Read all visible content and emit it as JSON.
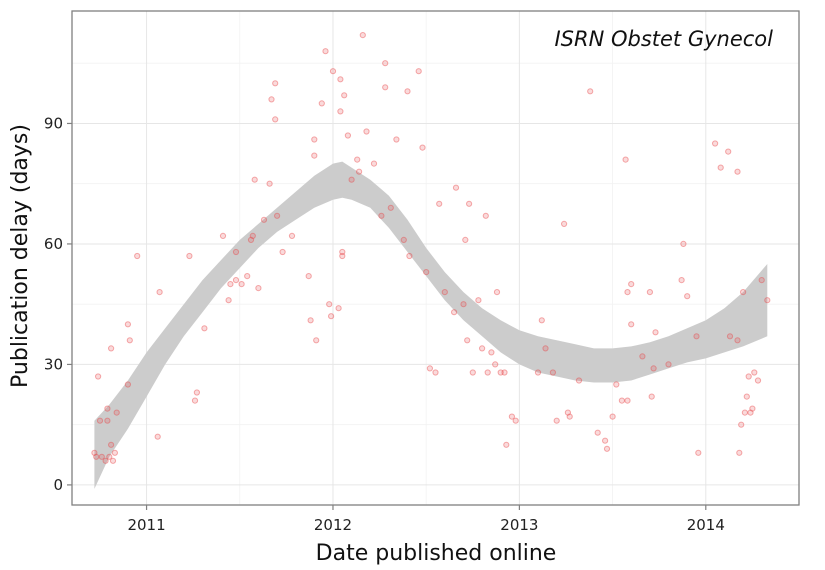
{
  "chart_data": {
    "type": "scatter",
    "title": "ISRN Obstet Gynecol",
    "xlabel": "Date published online",
    "ylabel": "Publication delay (days)",
    "x_is_year_fraction": true,
    "xlim": [
      2010.6,
      2014.5
    ],
    "ylim": [
      -5,
      118
    ],
    "x_ticks": [
      2011,
      2012,
      2013,
      2014
    ],
    "x_tick_labels": [
      "2011",
      "2012",
      "2013",
      "2014"
    ],
    "y_ticks": [
      0,
      30,
      60,
      90
    ],
    "y_tick_labels": [
      "0",
      "30",
      "60",
      "90"
    ],
    "grid": true,
    "legend": "none",
    "point_color": "#e8474a",
    "band_color": "#cccccc",
    "points": [
      [
        2010.72,
        8
      ],
      [
        2010.73,
        7
      ],
      [
        2010.74,
        27
      ],
      [
        2010.75,
        16
      ],
      [
        2010.76,
        7
      ],
      [
        2010.78,
        6
      ],
      [
        2010.79,
        16
      ],
      [
        2010.79,
        19
      ],
      [
        2010.8,
        7
      ],
      [
        2010.81,
        34
      ],
      [
        2010.81,
        10
      ],
      [
        2010.82,
        6
      ],
      [
        2010.83,
        8
      ],
      [
        2010.84,
        18
      ],
      [
        2010.9,
        25
      ],
      [
        2010.9,
        40
      ],
      [
        2010.91,
        36
      ],
      [
        2010.95,
        57
      ],
      [
        2011.06,
        12
      ],
      [
        2011.07,
        48
      ],
      [
        2011.23,
        57
      ],
      [
        2011.26,
        21
      ],
      [
        2011.27,
        23
      ],
      [
        2011.31,
        39
      ],
      [
        2011.41,
        62
      ],
      [
        2011.44,
        46
      ],
      [
        2011.45,
        50
      ],
      [
        2011.48,
        58
      ],
      [
        2011.48,
        51
      ],
      [
        2011.51,
        50
      ],
      [
        2011.54,
        52
      ],
      [
        2011.56,
        61
      ],
      [
        2011.57,
        62
      ],
      [
        2011.58,
        76
      ],
      [
        2011.6,
        49
      ],
      [
        2011.63,
        66
      ],
      [
        2011.66,
        75
      ],
      [
        2011.67,
        96
      ],
      [
        2011.69,
        100
      ],
      [
        2011.69,
        91
      ],
      [
        2011.7,
        67
      ],
      [
        2011.73,
        58
      ],
      [
        2011.78,
        62
      ],
      [
        2011.87,
        52
      ],
      [
        2011.88,
        41
      ],
      [
        2011.9,
        82
      ],
      [
        2011.9,
        86
      ],
      [
        2011.91,
        36
      ],
      [
        2011.94,
        95
      ],
      [
        2011.96,
        108
      ],
      [
        2011.98,
        45
      ],
      [
        2011.99,
        42
      ],
      [
        2012.0,
        103
      ],
      [
        2012.03,
        44
      ],
      [
        2012.05,
        57
      ],
      [
        2012.05,
        58
      ],
      [
        2012.04,
        93
      ],
      [
        2012.04,
        101
      ],
      [
        2012.06,
        97
      ],
      [
        2012.08,
        87
      ],
      [
        2012.1,
        76
      ],
      [
        2012.13,
        81
      ],
      [
        2012.14,
        78
      ],
      [
        2012.16,
        112
      ],
      [
        2012.18,
        88
      ],
      [
        2012.22,
        80
      ],
      [
        2012.26,
        67
      ],
      [
        2012.28,
        99
      ],
      [
        2012.28,
        105
      ],
      [
        2012.31,
        69
      ],
      [
        2012.34,
        86
      ],
      [
        2012.38,
        61
      ],
      [
        2012.4,
        98
      ],
      [
        2012.41,
        57
      ],
      [
        2012.46,
        103
      ],
      [
        2012.48,
        84
      ],
      [
        2012.5,
        53
      ],
      [
        2012.52,
        29
      ],
      [
        2012.55,
        28
      ],
      [
        2012.57,
        70
      ],
      [
        2012.6,
        48
      ],
      [
        2012.65,
        43
      ],
      [
        2012.66,
        74
      ],
      [
        2012.7,
        45
      ],
      [
        2012.71,
        61
      ],
      [
        2012.72,
        36
      ],
      [
        2012.73,
        70
      ],
      [
        2012.75,
        28
      ],
      [
        2012.78,
        46
      ],
      [
        2012.8,
        34
      ],
      [
        2012.82,
        67
      ],
      [
        2012.83,
        28
      ],
      [
        2012.85,
        33
      ],
      [
        2012.87,
        30
      ],
      [
        2012.88,
        48
      ],
      [
        2012.9,
        28
      ],
      [
        2012.92,
        28
      ],
      [
        2012.93,
        10
      ],
      [
        2012.96,
        17
      ],
      [
        2012.98,
        16
      ],
      [
        2013.1,
        28
      ],
      [
        2013.12,
        41
      ],
      [
        2013.14,
        34
      ],
      [
        2013.18,
        28
      ],
      [
        2013.2,
        16
      ],
      [
        2013.24,
        65
      ],
      [
        2013.26,
        18
      ],
      [
        2013.27,
        17
      ],
      [
        2013.32,
        26
      ],
      [
        2013.38,
        98
      ],
      [
        2013.42,
        13
      ],
      [
        2013.46,
        11
      ],
      [
        2013.47,
        9
      ],
      [
        2013.5,
        17
      ],
      [
        2013.52,
        25
      ],
      [
        2013.55,
        21
      ],
      [
        2013.57,
        81
      ],
      [
        2013.58,
        48
      ],
      [
        2013.58,
        21
      ],
      [
        2013.6,
        50
      ],
      [
        2013.6,
        40
      ],
      [
        2013.66,
        32
      ],
      [
        2013.7,
        48
      ],
      [
        2013.71,
        22
      ],
      [
        2013.72,
        29
      ],
      [
        2013.73,
        38
      ],
      [
        2013.8,
        30
      ],
      [
        2013.87,
        51
      ],
      [
        2013.88,
        60
      ],
      [
        2013.9,
        47
      ],
      [
        2013.96,
        8
      ],
      [
        2013.95,
        37
      ],
      [
        2014.05,
        85
      ],
      [
        2014.08,
        79
      ],
      [
        2014.12,
        83
      ],
      [
        2014.13,
        37
      ],
      [
        2014.17,
        36
      ],
      [
        2014.17,
        78
      ],
      [
        2014.18,
        8
      ],
      [
        2014.19,
        15
      ],
      [
        2014.2,
        48
      ],
      [
        2014.21,
        18
      ],
      [
        2014.22,
        22
      ],
      [
        2014.23,
        27
      ],
      [
        2014.24,
        18
      ],
      [
        2014.25,
        19
      ],
      [
        2014.26,
        28
      ],
      [
        2014.28,
        26
      ],
      [
        2014.3,
        51
      ],
      [
        2014.33,
        46
      ]
    ],
    "band": {
      "x": [
        2010.72,
        2010.8,
        2010.9,
        2011.0,
        2011.1,
        2011.2,
        2011.3,
        2011.4,
        2011.5,
        2011.6,
        2011.7,
        2011.8,
        2011.9,
        2012.0,
        2012.05,
        2012.1,
        2012.2,
        2012.3,
        2012.4,
        2012.5,
        2012.6,
        2012.7,
        2012.8,
        2012.9,
        2013.0,
        2013.1,
        2013.2,
        2013.3,
        2013.4,
        2013.5,
        2013.6,
        2013.7,
        2013.8,
        2013.9,
        2014.0,
        2014.1,
        2014.2,
        2014.33
      ],
      "lower": [
        -1,
        7,
        14,
        22,
        30,
        37,
        43,
        49,
        54,
        59,
        63,
        66,
        69,
        71,
        71.5,
        71,
        69,
        64,
        58,
        52,
        46,
        41,
        37,
        33,
        30,
        28,
        27,
        26,
        25.5,
        25.5,
        26,
        27.5,
        29,
        30.5,
        31.5,
        33,
        34.5,
        37
      ],
      "upper": [
        16,
        20,
        26,
        33,
        39,
        45,
        51,
        56,
        61,
        65,
        69,
        73,
        77,
        80,
        80.5,
        79,
        76,
        72,
        66,
        59,
        53,
        48,
        44,
        41,
        38.5,
        37,
        36,
        35,
        34,
        34,
        34.5,
        35.5,
        37,
        39,
        41,
        44,
        48,
        55
      ]
    }
  }
}
